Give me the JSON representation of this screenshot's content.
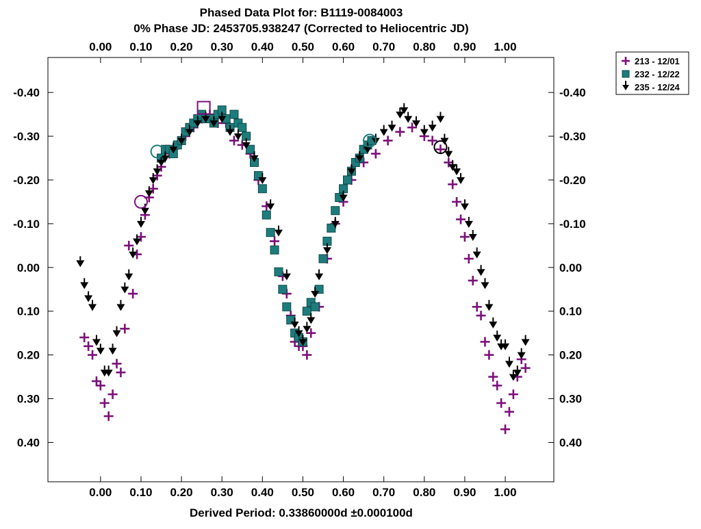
{
  "chart_data": {
    "type": "scatter",
    "title": "Phased Data Plot for: B1119-0084003",
    "subtitle": "0% Phase JD:  2453705.938247   (Corrected to Heliocentric JD)",
    "xlabel": "Derived Period: 0.33860000d   ±0.000100d",
    "ylabel": "",
    "xlim": [
      -0.13,
      1.12
    ],
    "ylim": [
      0.49,
      -0.48
    ],
    "y_inverted": true,
    "grid": false,
    "legend_position": "outside-top-right",
    "x_ticks": [
      0.0,
      0.1,
      0.2,
      0.3,
      0.4,
      0.5,
      0.6,
      0.7,
      0.8,
      0.9,
      1.0
    ],
    "x_tick_labels": [
      "0.00",
      "0.10",
      "0.20",
      "0.30",
      "0.40",
      "0.50",
      "0.60",
      "0.70",
      "0.80",
      "0.90",
      "1.00"
    ],
    "y_ticks": [
      -0.4,
      -0.3,
      -0.2,
      -0.1,
      0.0,
      0.1,
      0.2,
      0.3,
      0.4
    ],
    "y_tick_labels": [
      "-0.40",
      "-0.30",
      "-0.20",
      "-0.10",
      "0.00",
      "0.10",
      "0.20",
      "0.30",
      "0.40"
    ],
    "series": [
      {
        "name": "213 - 12/01",
        "marker": "plus",
        "color": "#7b0f7b",
        "x": [
          -0.04,
          -0.03,
          -0.02,
          -0.01,
          0.0,
          0.01,
          0.02,
          0.03,
          0.04,
          0.05,
          0.06,
          0.07,
          0.08,
          0.09,
          0.1,
          0.11,
          0.12,
          0.13,
          0.14,
          0.15,
          0.17,
          0.19,
          0.21,
          0.23,
          0.25,
          0.27,
          0.29,
          0.31,
          0.33,
          0.35,
          0.37,
          0.39,
          0.41,
          0.43,
          0.45,
          0.46,
          0.47,
          0.48,
          0.49,
          0.5,
          0.51,
          0.52,
          0.54,
          0.56,
          0.58,
          0.6,
          0.62,
          0.65,
          0.68,
          0.71,
          0.74,
          0.77,
          0.8,
          0.82,
          0.84,
          0.86,
          0.87,
          0.88,
          0.89,
          0.9,
          0.91,
          0.92,
          0.93,
          0.94,
          0.95,
          0.96,
          0.97,
          0.98,
          0.99,
          1.0,
          1.01,
          1.02,
          1.03,
          1.04,
          1.05
        ],
        "y": [
          0.16,
          0.18,
          0.2,
          0.26,
          0.27,
          0.31,
          0.34,
          0.29,
          0.22,
          0.24,
          0.14,
          -0.05,
          0.06,
          -0.03,
          -0.07,
          -0.12,
          -0.16,
          -0.18,
          -0.21,
          -0.23,
          -0.26,
          -0.28,
          -0.3,
          -0.32,
          -0.34,
          -0.35,
          -0.33,
          -0.33,
          -0.29,
          -0.28,
          -0.26,
          -0.2,
          -0.14,
          -0.06,
          0.02,
          0.06,
          0.11,
          0.17,
          0.18,
          0.18,
          0.2,
          0.15,
          0.09,
          -0.02,
          -0.1,
          -0.15,
          -0.2,
          -0.24,
          -0.26,
          -0.29,
          -0.31,
          -0.32,
          -0.3,
          -0.29,
          -0.27,
          -0.24,
          -0.19,
          -0.15,
          -0.11,
          -0.07,
          -0.02,
          0.03,
          0.09,
          0.11,
          0.17,
          0.2,
          0.25,
          0.27,
          0.31,
          0.37,
          0.33,
          0.29,
          0.25,
          0.21,
          0.23
        ]
      },
      {
        "name": "232 - 12/22",
        "marker": "square",
        "color": "#1e7c7c",
        "x": [
          0.15,
          0.16,
          0.17,
          0.18,
          0.19,
          0.2,
          0.21,
          0.22,
          0.23,
          0.24,
          0.25,
          0.26,
          0.27,
          0.28,
          0.29,
          0.3,
          0.31,
          0.32,
          0.33,
          0.34,
          0.35,
          0.36,
          0.37,
          0.38,
          0.39,
          0.4,
          0.41,
          0.42,
          0.43,
          0.44,
          0.45,
          0.46,
          0.47,
          0.48,
          0.49,
          0.5,
          0.51,
          0.52,
          0.53,
          0.54,
          0.55,
          0.56,
          0.57,
          0.58,
          0.59,
          0.6,
          0.61,
          0.62,
          0.63,
          0.64,
          0.65,
          0.66,
          0.67
        ],
        "y": [
          -0.25,
          -0.27,
          -0.27,
          -0.26,
          -0.28,
          -0.29,
          -0.31,
          -0.32,
          -0.33,
          -0.34,
          -0.35,
          -0.34,
          -0.34,
          -0.33,
          -0.35,
          -0.36,
          -0.34,
          -0.32,
          -0.35,
          -0.33,
          -0.32,
          -0.3,
          -0.27,
          -0.24,
          -0.21,
          -0.18,
          -0.12,
          -0.08,
          -0.04,
          0.01,
          0.05,
          0.09,
          0.12,
          0.15,
          0.16,
          0.17,
          0.1,
          0.08,
          0.09,
          0.05,
          -0.02,
          -0.06,
          -0.09,
          -0.13,
          -0.16,
          -0.18,
          -0.2,
          -0.22,
          -0.24,
          -0.25,
          -0.27,
          -0.28,
          -0.29
        ]
      },
      {
        "name": "235 - 12/24",
        "marker": "triangle-down",
        "color": "#000000",
        "x": [
          -0.05,
          -0.04,
          -0.03,
          -0.02,
          -0.01,
          0.0,
          0.01,
          0.02,
          0.03,
          0.04,
          0.05,
          0.06,
          0.07,
          0.08,
          0.09,
          0.1,
          0.11,
          0.12,
          0.13,
          0.14,
          0.15,
          0.16,
          0.18,
          0.2,
          0.22,
          0.24,
          0.26,
          0.28,
          0.3,
          0.32,
          0.34,
          0.36,
          0.38,
          0.4,
          0.42,
          0.44,
          0.46,
          0.48,
          0.49,
          0.5,
          0.51,
          0.52,
          0.53,
          0.54,
          0.56,
          0.58,
          0.6,
          0.62,
          0.64,
          0.66,
          0.68,
          0.7,
          0.72,
          0.74,
          0.75,
          0.76,
          0.78,
          0.8,
          0.82,
          0.84,
          0.85,
          0.86,
          0.87,
          0.88,
          0.89,
          0.9,
          0.91,
          0.92,
          0.93,
          0.94,
          0.95,
          0.96,
          0.97,
          0.98,
          0.99,
          1.0,
          1.01,
          1.02,
          1.03,
          1.04,
          1.05
        ],
        "y": [
          -0.01,
          0.04,
          0.07,
          0.09,
          0.17,
          0.19,
          0.24,
          0.24,
          0.19,
          0.15,
          0.09,
          0.05,
          0.02,
          -0.03,
          -0.06,
          -0.1,
          -0.13,
          -0.17,
          -0.2,
          -0.22,
          -0.24,
          -0.25,
          -0.27,
          -0.29,
          -0.31,
          -0.33,
          -0.34,
          -0.33,
          -0.34,
          -0.31,
          -0.3,
          -0.28,
          -0.25,
          -0.2,
          -0.14,
          -0.08,
          0.02,
          0.13,
          0.15,
          0.17,
          0.14,
          0.12,
          0.06,
          0.02,
          -0.04,
          -0.1,
          -0.16,
          -0.22,
          -0.25,
          -0.27,
          -0.29,
          -0.31,
          -0.32,
          -0.35,
          -0.36,
          -0.34,
          -0.33,
          -0.31,
          -0.32,
          -0.34,
          -0.29,
          -0.26,
          -0.23,
          -0.22,
          -0.2,
          -0.14,
          -0.1,
          -0.07,
          -0.03,
          0.01,
          0.04,
          0.09,
          0.13,
          0.16,
          0.18,
          0.18,
          0.22,
          0.25,
          0.24,
          0.2,
          0.17
        ]
      }
    ],
    "open_markers": [
      {
        "series": 0,
        "x": 0.1,
        "y": -0.15
      },
      {
        "series": 0,
        "x": 0.255,
        "y": -0.365
      },
      {
        "series": 1,
        "x": 0.14,
        "y": -0.265
      },
      {
        "series": 1,
        "x": 0.665,
        "y": -0.29
      },
      {
        "series": 2,
        "x": 0.84,
        "y": -0.275
      }
    ]
  }
}
